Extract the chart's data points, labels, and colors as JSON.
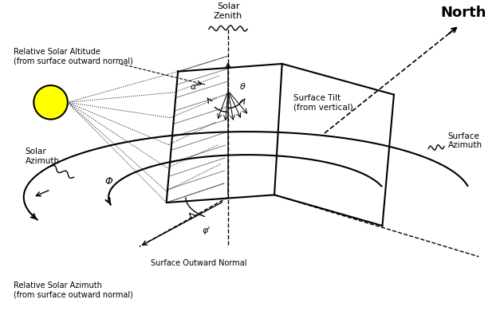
{
  "bg_color": "#ffffff",
  "line_color": "#000000",
  "sun_color": "#ffff00",
  "sun_edge_color": "#000000",
  "figsize": [
    6.32,
    3.95
  ],
  "dpi": 100,
  "labels": {
    "north": "North",
    "solar_zenith": "Solar\nZenith",
    "relative_solar_altitude": "Relative Solar Altitude\n(from surface outward normal)",
    "solar_azimuth": "Solar\nAzimuth",
    "relative_solar_azimuth": "Relative Solar Azimuth\n(from surface outward normal)",
    "surface_outward_normal": "Surface Outward Normal",
    "surface_tilt": "Surface Tilt\n(from vertical)",
    "surface_azimuth": "Surface\nAzimuth",
    "alpha_prime": "α'",
    "phi_prime": "φ'",
    "phi": "Φ",
    "theta": "θ"
  }
}
